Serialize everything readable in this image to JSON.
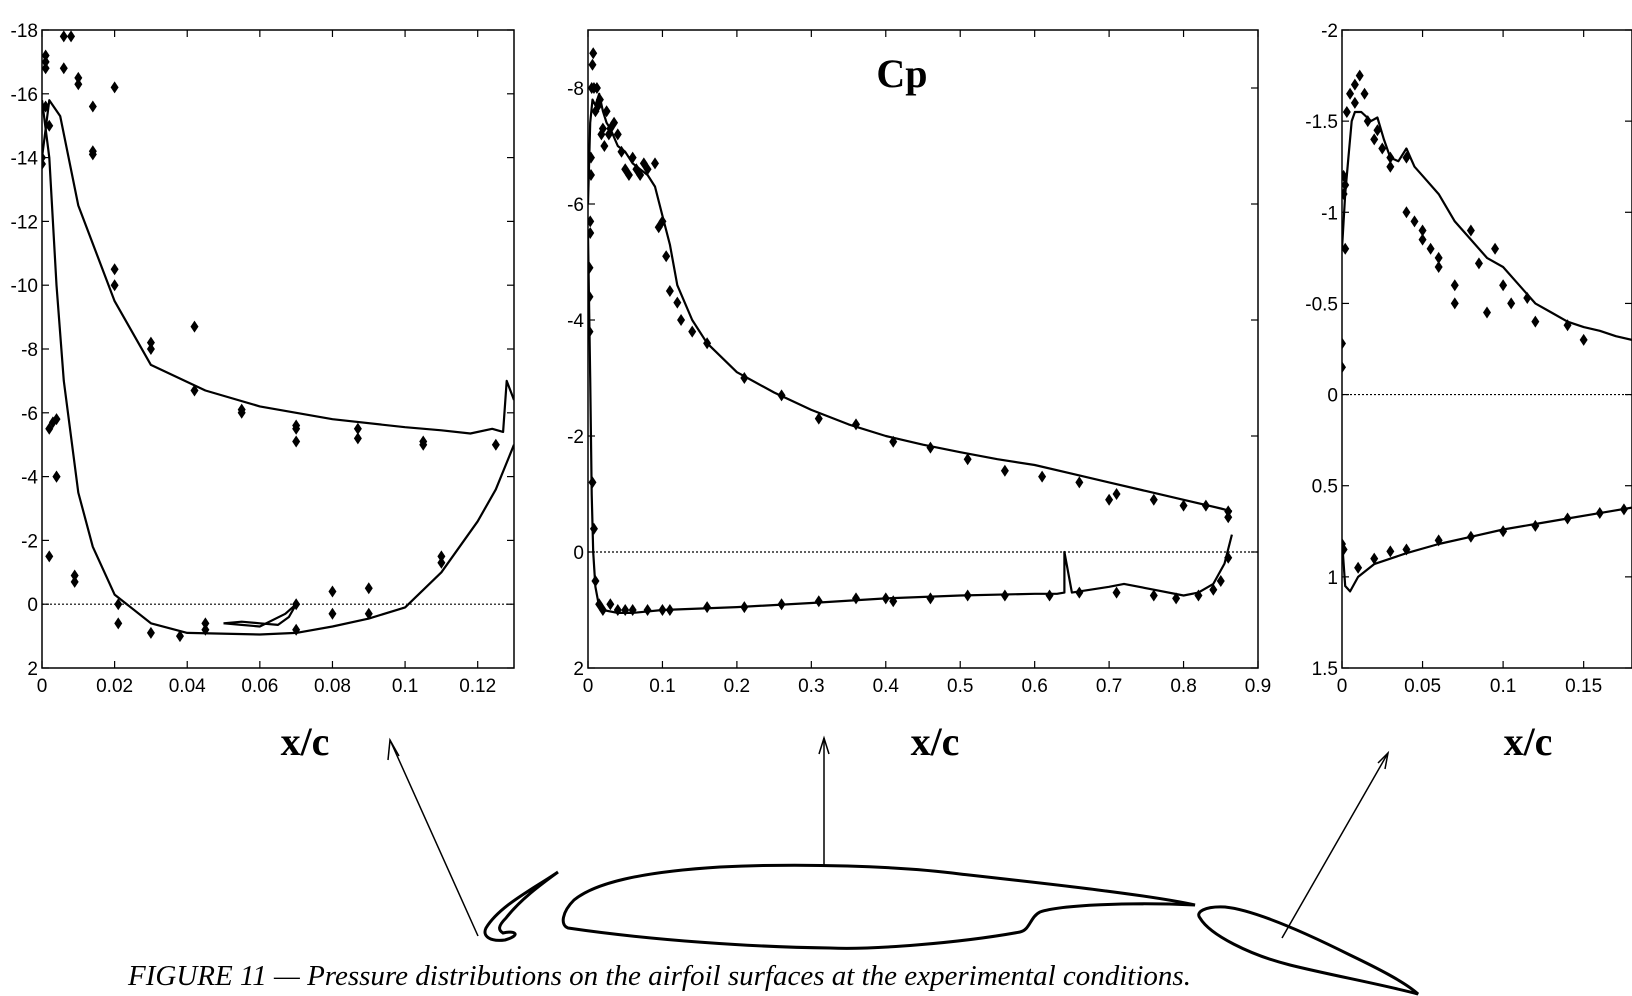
{
  "caption": "FIGURE 11 — Pressure distributions on the airfoil surfaces at the experimental conditions.",
  "chart_data": [
    {
      "type": "line",
      "panel": "slat",
      "title": "",
      "xlabel": "x/c",
      "ylabel": "",
      "xlim": [
        0,
        0.13
      ],
      "ylim": [
        2,
        -18
      ],
      "y_inverted": true,
      "xticks": [
        0,
        0.02,
        0.04,
        0.06,
        0.08,
        0.1,
        0.12
      ],
      "xtick_labels": [
        "0",
        "0.02",
        "0.04",
        "0.06",
        "0.08",
        "0.1",
        "0.12"
      ],
      "yticks": [
        -18,
        -16,
        -14,
        -12,
        -10,
        -8,
        -6,
        -4,
        -2,
        0,
        2
      ],
      "ytick_labels": [
        "-18",
        "-16",
        "-14",
        "-12",
        "-10",
        "-8",
        "-6",
        "-4",
        "-2",
        "0",
        "2"
      ],
      "zero_line": true,
      "series": [
        {
          "kind": "line",
          "x": [
            0,
            0.002,
            0.005,
            0.01,
            0.02,
            0.03,
            0.045,
            0.06,
            0.08,
            0.1,
            0.11,
            0.118,
            0.124,
            0.127,
            0.128,
            0.13
          ],
          "y": [
            -14,
            -15.8,
            -15.3,
            -12.5,
            -9.5,
            -7.5,
            -6.7,
            -6.2,
            -5.8,
            -5.55,
            -5.45,
            -5.35,
            -5.5,
            -5.4,
            -7,
            -6.4
          ]
        },
        {
          "kind": "line",
          "x": [
            0,
            0.002,
            0.004,
            0.006,
            0.01,
            0.014,
            0.02,
            0.03,
            0.04,
            0.06,
            0.07,
            0.08,
            0.09,
            0.1,
            0.11,
            0.12,
            0.125,
            0.13
          ],
          "y": [
            -15.8,
            -14,
            -10,
            -7,
            -3.5,
            -1.8,
            -0.3,
            0.6,
            0.9,
            0.95,
            0.9,
            0.7,
            0.45,
            0.1,
            -1,
            -2.6,
            -3.6,
            -5
          ]
        },
        {
          "kind": "line",
          "x": [
            0.05,
            0.055,
            0.06,
            0.065,
            0.068,
            0.07,
            0.067,
            0.06,
            0.055,
            0.05
          ],
          "y": [
            0.6,
            0.55,
            0.6,
            0.65,
            0.4,
            0.0,
            0.3,
            0.7,
            0.65,
            0.6
          ]
        },
        {
          "kind": "markers",
          "x": [
            0.001,
            0.001,
            0.002,
            0.002,
            0.004,
            0.004,
            0.006,
            0.006,
            0.008,
            0.01,
            0.01,
            0.014,
            0.014,
            0.014,
            0.02,
            0.02,
            0.02,
            0.021,
            0.021,
            0.03,
            0.03,
            0.03,
            0.038,
            0.042,
            0.042,
            0.045,
            0.045,
            0.055,
            0.055,
            0.07,
            0.07,
            0.07,
            0.07,
            0.07,
            0.08,
            0.08,
            0.087,
            0.087,
            0.09,
            0.09,
            0.105,
            0.105,
            0.11,
            0.11,
            0.125,
            0.0,
            0.0,
            0.001,
            0.002,
            0.003,
            0.004,
            0.009,
            0.009,
            0.001
          ],
          "y": [
            -17,
            -17.2,
            -15,
            -5.5,
            -5.8,
            -4,
            -17.8,
            -16.8,
            -17.8,
            -16.5,
            -16.3,
            -15.6,
            -14.1,
            -14.2,
            -16.2,
            -10.5,
            -10,
            0,
            0.6,
            -8.2,
            -8,
            0.9,
            1.0,
            -8.7,
            -6.7,
            0.6,
            0.8,
            -6.1,
            -6,
            -5.6,
            -5.5,
            -5.1,
            0,
            0.8,
            -0.4,
            0.3,
            -5.5,
            -5.2,
            0.3,
            -0.5,
            -5.1,
            -5.0,
            -1.5,
            -1.3,
            -5,
            -13.8,
            -14,
            -16.8,
            -1.5,
            -5.7,
            -4,
            -0.9,
            -0.7,
            -15.6
          ]
        }
      ]
    },
    {
      "type": "line",
      "panel": "main",
      "title": "Cp",
      "xlabel": "x/c",
      "ylabel": "",
      "xlim": [
        0,
        0.9
      ],
      "ylim": [
        2,
        -9
      ],
      "y_inverted": true,
      "xticks": [
        0,
        0.1,
        0.2,
        0.3,
        0.4,
        0.5,
        0.6,
        0.7,
        0.8,
        0.9
      ],
      "xtick_labels": [
        "0",
        "0.1",
        "0.2",
        "0.3",
        "0.4",
        "0.5",
        "0.6",
        "0.7",
        "0.8",
        "0.9"
      ],
      "yticks": [
        -8,
        -6,
        -4,
        -2,
        0,
        2
      ],
      "ytick_labels": [
        "-8",
        "-6",
        "-4",
        "-2",
        "0",
        "2"
      ],
      "zero_line": true,
      "series": [
        {
          "kind": "line",
          "x": [
            0,
            0.003,
            0.006,
            0.01,
            0.015,
            0.02,
            0.025,
            0.03,
            0.04,
            0.05,
            0.06,
            0.07,
            0.08,
            0.09,
            0.1,
            0.11,
            0.12,
            0.14,
            0.16,
            0.2,
            0.25,
            0.3,
            0.35,
            0.4,
            0.45,
            0.5,
            0.55,
            0.6,
            0.65,
            0.7,
            0.75,
            0.8,
            0.85,
            0.865
          ],
          "y": [
            -6,
            -7.4,
            -7.8,
            -7.7,
            -7.9,
            -7.6,
            -7.4,
            -7.3,
            -7.0,
            -6.9,
            -6.7,
            -6.6,
            -6.5,
            -6.3,
            -5.8,
            -5.3,
            -4.6,
            -4.0,
            -3.6,
            -3.1,
            -2.75,
            -2.45,
            -2.2,
            -2.0,
            -1.85,
            -1.72,
            -1.6,
            -1.5,
            -1.35,
            -1.2,
            -1.05,
            -0.9,
            -0.75,
            -0.7
          ]
        },
        {
          "kind": "line",
          "x": [
            0,
            0.003,
            0.005,
            0.007,
            0.01,
            0.015,
            0.02,
            0.04,
            0.06,
            0.1,
            0.2,
            0.3,
            0.4,
            0.5,
            0.6,
            0.63,
            0.64,
            0.64,
            0.65,
            0.7,
            0.72,
            0.76,
            0.8,
            0.82,
            0.84,
            0.855,
            0.865
          ],
          "y": [
            -5.5,
            -3,
            -1,
            0,
            0.6,
            0.95,
            1.0,
            1.05,
            1.05,
            1.0,
            0.95,
            0.88,
            0.8,
            0.75,
            0.72,
            0.72,
            0.7,
            0.0,
            0.7,
            0.6,
            0.55,
            0.65,
            0.75,
            0.7,
            0.55,
            0.2,
            -0.3
          ]
        },
        {
          "kind": "markers",
          "x": [
            0.002,
            0.002,
            0.003,
            0.003,
            0.004,
            0.005,
            0.006,
            0.007,
            0.008,
            0.01,
            0.012,
            0.014,
            0.016,
            0.018,
            0.02,
            0.022,
            0.025,
            0.028,
            0.03,
            0.035,
            0.04,
            0.045,
            0.05,
            0.055,
            0.06,
            0.065,
            0.07,
            0.075,
            0.08,
            0.09,
            0.095,
            0.1,
            0.105,
            0.11,
            0.12,
            0.125,
            0.14,
            0.16,
            0.21,
            0.26,
            0.31,
            0.36,
            0.41,
            0.46,
            0.51,
            0.56,
            0.61,
            0.66,
            0.7,
            0.71,
            0.76,
            0.8,
            0.83,
            0.86,
            0.86,
            0.002,
            0.004,
            0.006,
            0.008,
            0.01,
            0.015,
            0.02,
            0.03,
            0.04,
            0.05,
            0.06,
            0.08,
            0.1,
            0.11,
            0.16,
            0.21,
            0.26,
            0.31,
            0.36,
            0.4,
            0.41,
            0.46,
            0.51,
            0.56,
            0.62,
            0.66,
            0.71,
            0.76,
            0.79,
            0.82,
            0.84,
            0.85,
            0.86
          ],
          "y": [
            -3.8,
            -4.4,
            -5.5,
            -5.7,
            -6.8,
            -8.0,
            -8.4,
            -8.6,
            -8.0,
            -7.6,
            -8.0,
            -7.7,
            -7.8,
            -7.2,
            -7.3,
            -7.0,
            -7.6,
            -7.2,
            -7.3,
            -7.4,
            -7.2,
            -6.9,
            -6.6,
            -6.5,
            -6.8,
            -6.6,
            -6.5,
            -6.7,
            -6.6,
            -6.7,
            -5.6,
            -5.7,
            -5.1,
            -4.5,
            -4.3,
            -4.0,
            -3.8,
            -3.6,
            -3.0,
            -2.7,
            -2.3,
            -2.2,
            -1.9,
            -1.8,
            -1.6,
            -1.4,
            -1.3,
            -1.2,
            -0.9,
            -1.0,
            -0.9,
            -0.8,
            -0.8,
            -0.7,
            -0.6,
            -4.9,
            -6.5,
            -1.2,
            -0.4,
            0.5,
            0.9,
            1.0,
            0.9,
            1.0,
            1.0,
            1.0,
            1.0,
            1.0,
            1.0,
            0.95,
            0.95,
            0.9,
            0.85,
            0.8,
            0.8,
            0.85,
            0.8,
            0.75,
            0.75,
            0.75,
            0.7,
            0.7,
            0.75,
            0.8,
            0.75,
            0.65,
            0.5,
            0.1
          ]
        }
      ]
    },
    {
      "type": "line",
      "panel": "flap",
      "title": "",
      "xlabel": "x/c",
      "ylabel": "",
      "xlim": [
        0,
        0.18
      ],
      "ylim": [
        1.5,
        -2
      ],
      "y_inverted": true,
      "xticks": [
        0,
        0.05,
        0.1,
        0.15
      ],
      "xtick_labels": [
        "0",
        "0.05",
        "0.1",
        "0.15"
      ],
      "yticks": [
        -2,
        -1.5,
        -1,
        -0.5,
        0,
        0.5,
        1,
        1.5
      ],
      "ytick_labels": [
        "-2",
        "-1.5",
        "-1",
        "-0.5",
        "0",
        "0.5",
        "1",
        "1.5"
      ],
      "zero_line": true,
      "series": [
        {
          "kind": "line",
          "x": [
            0,
            0.002,
            0.004,
            0.006,
            0.008,
            0.012,
            0.018,
            0.022,
            0.026,
            0.03,
            0.035,
            0.04,
            0.045,
            0.05,
            0.06,
            0.07,
            0.08,
            0.09,
            0.1,
            0.11,
            0.12,
            0.13,
            0.14,
            0.15,
            0.16,
            0.17,
            0.18
          ],
          "y": [
            -0.8,
            -1.1,
            -1.3,
            -1.5,
            -1.55,
            -1.55,
            -1.5,
            -1.52,
            -1.4,
            -1.3,
            -1.28,
            -1.35,
            -1.25,
            -1.2,
            -1.1,
            -0.95,
            -0.85,
            -0.75,
            -0.7,
            -0.6,
            -0.5,
            -0.45,
            -0.4,
            -0.37,
            -0.35,
            -0.32,
            -0.3
          ]
        },
        {
          "kind": "line",
          "x": [
            0,
            0.002,
            0.005,
            0.01,
            0.02,
            0.04,
            0.06,
            0.08,
            0.1,
            0.12,
            0.14,
            0.16,
            0.18
          ],
          "y": [
            0.8,
            1.05,
            1.08,
            1.0,
            0.93,
            0.87,
            0.82,
            0.78,
            0.74,
            0.71,
            0.68,
            0.65,
            0.62
          ]
        },
        {
          "kind": "markers",
          "x": [
            0.0,
            0.0,
            0.001,
            0.001,
            0.002,
            0.002,
            0.003,
            0.005,
            0.008,
            0.008,
            0.011,
            0.014,
            0.016,
            0.02,
            0.022,
            0.025,
            0.03,
            0.03,
            0.04,
            0.04,
            0.045,
            0.05,
            0.05,
            0.055,
            0.06,
            0.06,
            0.07,
            0.07,
            0.08,
            0.085,
            0.09,
            0.095,
            0.1,
            0.105,
            0.115,
            0.12,
            0.14,
            0.15,
            0.0,
            0.001,
            0.01,
            0.02,
            0.03,
            0.04,
            0.06,
            0.08,
            0.1,
            0.12,
            0.14,
            0.16,
            0.175
          ],
          "y": [
            -0.15,
            -0.28,
            -1.1,
            -1.2,
            -1.15,
            -0.8,
            -1.55,
            -1.65,
            -1.7,
            -1.6,
            -1.75,
            -1.65,
            -1.5,
            -1.4,
            -1.45,
            -1.35,
            -1.25,
            -1.3,
            -1.3,
            -1.0,
            -0.95,
            -0.85,
            -0.9,
            -0.8,
            -0.7,
            -0.75,
            -0.6,
            -0.5,
            -0.9,
            -0.72,
            -0.45,
            -0.8,
            -0.6,
            -0.5,
            -0.53,
            -0.4,
            -0.38,
            -0.3,
            0.82,
            0.85,
            0.95,
            0.9,
            0.86,
            0.85,
            0.8,
            0.78,
            0.75,
            0.72,
            0.68,
            0.65,
            0.63
          ]
        }
      ]
    }
  ]
}
